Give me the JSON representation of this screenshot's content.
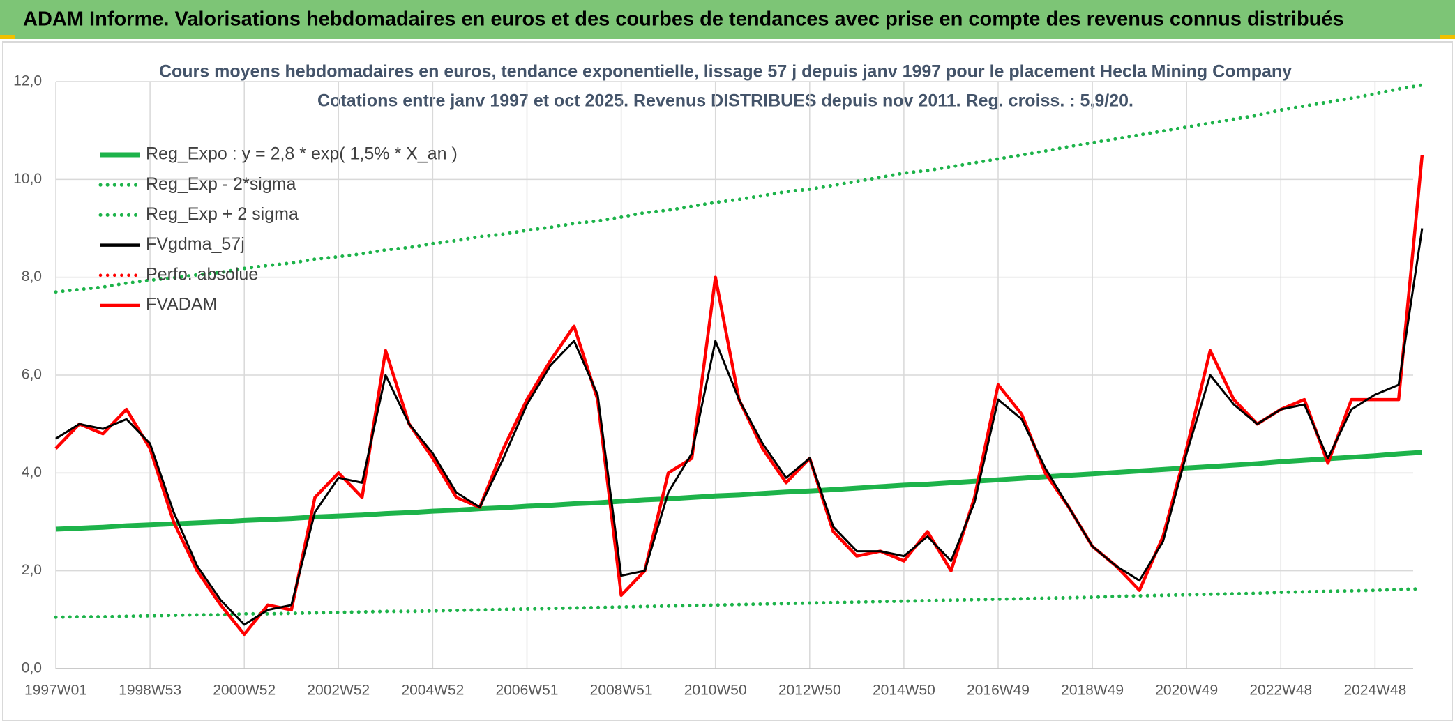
{
  "header": {
    "title": "ADAM Informe. Valorisations hebdomadaires en euros et des courbes de tendances avec prise en compte des revenus connus distribués"
  },
  "chart_data": {
    "type": "line",
    "title": "Cours moyens hebdomadaires en euros, tendance exponentielle, lissage 57 j depuis janv 1997 pour le placement Hecla Mining Company",
    "subtitle": "Cotations entre janv 1997 et oct 2025. Revenus DISTRIBUES depuis nov 2011. Reg. croiss. : 5,9/20.",
    "categories": [
      "1997W01",
      null,
      null,
      null,
      "1998W53",
      null,
      null,
      null,
      "2000W52",
      null,
      null,
      null,
      "2002W52",
      null,
      null,
      null,
      "2004W52",
      null,
      null,
      null,
      "2006W51",
      null,
      null,
      null,
      "2008W51",
      null,
      null,
      null,
      "2010W50",
      null,
      null,
      null,
      "2012W50",
      null,
      null,
      null,
      "2014W50",
      null,
      null,
      null,
      "2016W49",
      null,
      null,
      null,
      "2018W49",
      null,
      null,
      null,
      "2020W49",
      null,
      null,
      null,
      "2022W48",
      null,
      null,
      null,
      "2024W48",
      null,
      null
    ],
    "ylim": [
      0,
      12
    ],
    "yticks": [
      {
        "value": 0,
        "label": "0,0"
      },
      {
        "value": 2,
        "label": "2,0"
      },
      {
        "value": 4,
        "label": "4,0"
      },
      {
        "value": 6,
        "label": "6,0"
      },
      {
        "value": 8,
        "label": "8,0"
      },
      {
        "value": 10,
        "label": "10,0"
      },
      {
        "value": 12,
        "label": "12,0"
      }
    ],
    "grid": true,
    "legend": "top-left",
    "series": [
      {
        "name": "Reg_Expo : y = 2,8 * exp( 1,5% *  X_an )",
        "color": "#1db34a",
        "style": "solid",
        "values": [
          2.85,
          2.87,
          2.89,
          2.92,
          2.94,
          2.96,
          2.98,
          3.0,
          3.03,
          3.05,
          3.07,
          3.1,
          3.12,
          3.14,
          3.17,
          3.19,
          3.22,
          3.24,
          3.27,
          3.29,
          3.32,
          3.34,
          3.37,
          3.39,
          3.42,
          3.45,
          3.47,
          3.5,
          3.53,
          3.55,
          3.58,
          3.61,
          3.63,
          3.66,
          3.69,
          3.72,
          3.75,
          3.77,
          3.8,
          3.83,
          3.86,
          3.89,
          3.92,
          3.95,
          3.98,
          4.01,
          4.04,
          4.07,
          4.1,
          4.13,
          4.16,
          4.19,
          4.23,
          4.26,
          4.29,
          4.32,
          4.35,
          4.39,
          4.42
        ]
      },
      {
        "name": "Reg_Exp - 2*sigma",
        "color": "#1db34a",
        "style": "dotted",
        "values": [
          1.05,
          1.06,
          1.06,
          1.07,
          1.08,
          1.09,
          1.1,
          1.1,
          1.12,
          1.12,
          1.13,
          1.14,
          1.15,
          1.16,
          1.17,
          1.17,
          1.18,
          1.19,
          1.2,
          1.21,
          1.22,
          1.23,
          1.24,
          1.25,
          1.26,
          1.27,
          1.28,
          1.29,
          1.3,
          1.31,
          1.32,
          1.33,
          1.34,
          1.35,
          1.36,
          1.37,
          1.38,
          1.39,
          1.4,
          1.41,
          1.42,
          1.43,
          1.44,
          1.45,
          1.46,
          1.48,
          1.49,
          1.5,
          1.51,
          1.52,
          1.53,
          1.54,
          1.56,
          1.57,
          1.58,
          1.59,
          1.6,
          1.62,
          1.63
        ]
      },
      {
        "name": "Reg_Exp + 2 sigma",
        "color": "#1db34a",
        "style": "dotted",
        "values": [
          7.7,
          7.75,
          7.8,
          7.88,
          7.94,
          7.99,
          8.05,
          8.1,
          8.18,
          8.24,
          8.29,
          8.37,
          8.42,
          8.48,
          8.56,
          8.61,
          8.69,
          8.75,
          8.83,
          8.88,
          8.96,
          9.02,
          9.1,
          9.15,
          9.23,
          9.32,
          9.37,
          9.45,
          9.53,
          9.59,
          9.67,
          9.75,
          9.8,
          9.88,
          9.96,
          10.04,
          10.13,
          10.18,
          10.26,
          10.34,
          10.42,
          10.5,
          10.58,
          10.67,
          10.75,
          10.83,
          10.91,
          10.99,
          11.07,
          11.15,
          11.23,
          11.31,
          11.42,
          11.5,
          11.58,
          11.66,
          11.75,
          11.85,
          11.93
        ]
      },
      {
        "name": "FVgdma_57j",
        "color": "#000000",
        "style": "solid",
        "values": [
          4.7,
          5.0,
          4.9,
          5.1,
          4.6,
          3.2,
          2.1,
          1.4,
          0.9,
          1.2,
          1.3,
          3.2,
          3.9,
          3.8,
          6.0,
          5.0,
          4.4,
          3.6,
          3.3,
          4.3,
          5.4,
          6.2,
          6.7,
          5.6,
          1.9,
          2.0,
          3.6,
          4.4,
          6.7,
          5.5,
          4.6,
          3.9,
          4.3,
          2.9,
          2.4,
          2.4,
          2.3,
          2.7,
          2.2,
          3.4,
          5.5,
          5.1,
          4.1,
          3.3,
          2.5,
          2.1,
          1.8,
          2.6,
          4.4,
          6.0,
          5.4,
          5.0,
          5.3,
          5.4,
          4.3,
          5.3,
          5.6,
          5.8,
          9.0
        ]
      },
      {
        "name": "Perfo. absolue",
        "color": "#ff0000",
        "style": "dotted",
        "values": [
          null,
          null,
          null,
          null,
          null,
          null,
          null,
          null,
          null,
          null,
          null,
          null,
          null,
          null,
          null,
          null,
          null,
          null,
          null,
          null,
          null,
          null,
          null,
          null,
          null,
          null,
          null,
          null,
          null,
          null,
          null,
          null,
          null,
          null,
          null,
          null,
          null,
          null,
          null,
          null,
          null,
          null,
          null,
          null,
          null,
          null,
          null,
          null,
          null,
          null,
          null,
          null,
          null,
          null,
          null,
          null,
          null,
          null,
          null
        ]
      },
      {
        "name": "FVADAM",
        "color": "#ff0000",
        "style": "solid",
        "values": [
          4.5,
          5.0,
          4.8,
          5.3,
          4.5,
          3.0,
          2.0,
          1.3,
          0.7,
          1.3,
          1.2,
          3.5,
          4.0,
          3.5,
          6.5,
          5.0,
          4.3,
          3.5,
          3.3,
          4.5,
          5.5,
          6.3,
          7.0,
          5.5,
          1.5,
          2.0,
          4.0,
          4.3,
          8.0,
          5.5,
          4.5,
          3.8,
          4.3,
          2.8,
          2.3,
          2.4,
          2.2,
          2.8,
          2.0,
          3.5,
          5.8,
          5.2,
          4.0,
          3.3,
          2.5,
          2.1,
          1.6,
          2.7,
          4.5,
          6.5,
          5.5,
          5.0,
          5.3,
          5.5,
          4.2,
          5.5,
          5.5,
          5.5,
          10.5
        ]
      }
    ]
  }
}
